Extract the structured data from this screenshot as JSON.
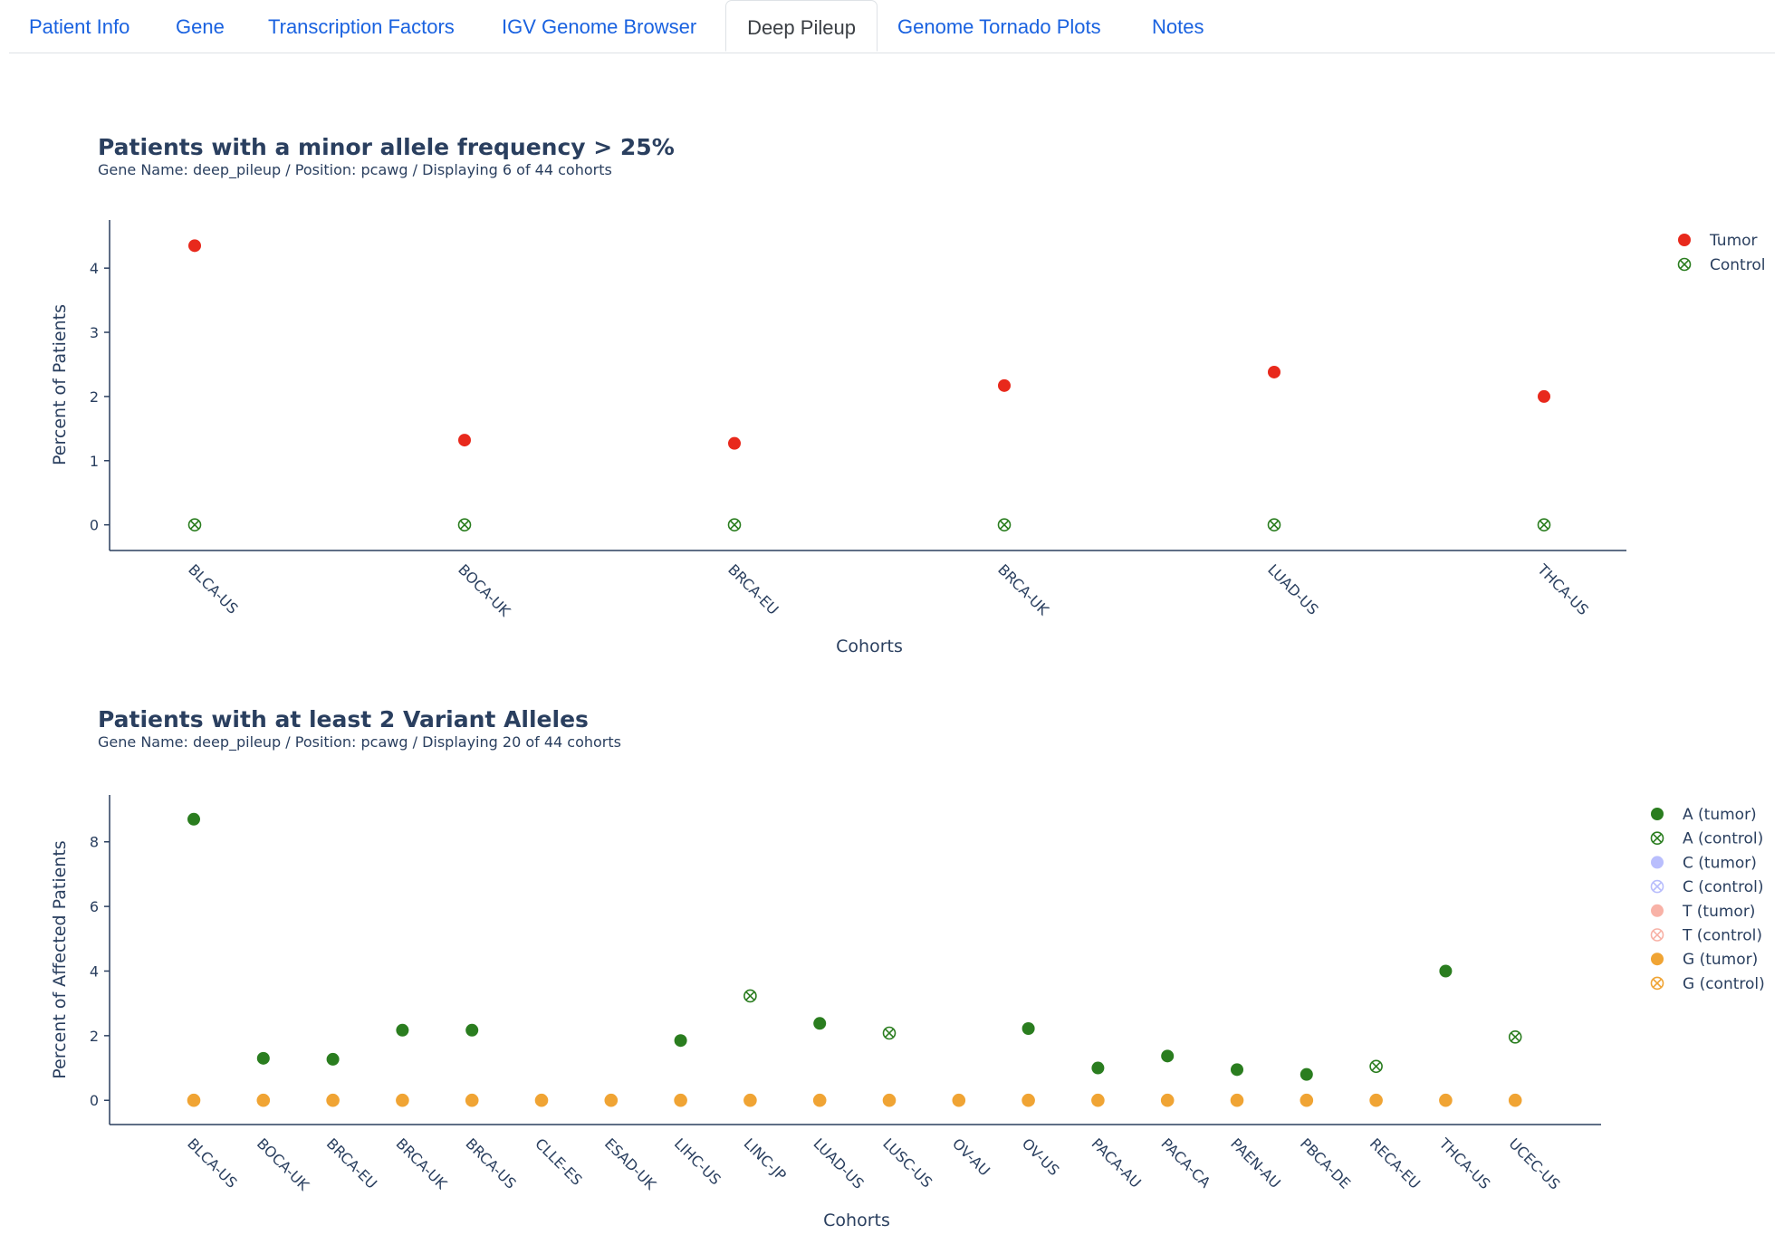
{
  "tabs": [
    {
      "label": "Patient Info",
      "active": false
    },
    {
      "label": "Gene",
      "active": false
    },
    {
      "label": "Transcription Factors",
      "active": false
    },
    {
      "label": "IGV Genome Browser",
      "active": false
    },
    {
      "label": "Deep Pileup",
      "active": true
    },
    {
      "label": "Genome Tornado Plots",
      "active": false
    },
    {
      "label": "Notes",
      "active": false
    }
  ],
  "chart_data": [
    {
      "type": "scatter",
      "title": "Patients with a minor allele frequency > 25%",
      "subtitle": "Gene Name: deep_pileup / Position: pcawg / Displaying 6 of 44 cohorts",
      "xlabel": "Cohorts",
      "ylabel": "Percent of Patients",
      "ylim": [
        -0.4,
        4.75
      ],
      "yticks": [
        0,
        1,
        2,
        3,
        4
      ],
      "categories": [
        "BLCA-US",
        "BOCA-UK",
        "BRCA-EU",
        "BRCA-UK",
        "LUAD-US",
        "THCA-US"
      ],
      "legend_position": "top-right",
      "grid": false,
      "series": [
        {
          "name": "Tumor",
          "marker": "filled",
          "color": "#e8291c",
          "faded": false,
          "values": [
            4.35,
            1.32,
            1.27,
            2.17,
            2.38,
            2.0
          ]
        },
        {
          "name": "Control",
          "marker": "circle-x",
          "color": "#2a7d1f",
          "faded": false,
          "values": [
            0,
            0,
            0,
            0,
            0,
            0
          ]
        }
      ]
    },
    {
      "type": "scatter",
      "title": "Patients with at least 2 Variant Alleles",
      "subtitle": "Gene Name: deep_pileup / Position: pcawg / Displaying 20 of 44 cohorts",
      "xlabel": "Cohorts",
      "ylabel": "Percent of Affected Patients",
      "ylim": [
        -0.75,
        9.45
      ],
      "yticks": [
        0,
        2,
        4,
        6,
        8
      ],
      "categories": [
        "BLCA-US",
        "BOCA-UK",
        "BRCA-EU",
        "BRCA-UK",
        "BRCA-US",
        "CLLE-ES",
        "ESAD-UK",
        "LIHC-US",
        "LINC-JP",
        "LUAD-US",
        "LUSC-US",
        "OV-AU",
        "OV-US",
        "PACA-AU",
        "PACA-CA",
        "PAEN-AU",
        "PBCA-DE",
        "RECA-EU",
        "THCA-US",
        "UCEC-US"
      ],
      "legend_position": "top-right",
      "grid": false,
      "series": [
        {
          "name": "A (tumor)",
          "marker": "filled",
          "color": "#2a7d1f",
          "faded": false,
          "values": [
            8.7,
            1.3,
            1.27,
            2.17,
            2.17,
            null,
            null,
            1.85,
            null,
            2.38,
            null,
            null,
            2.22,
            1.0,
            1.37,
            0.95,
            0.8,
            null,
            4.0,
            null
          ]
        },
        {
          "name": "A (control)",
          "marker": "circle-x",
          "color": "#2a7d1f",
          "faded": false,
          "values": [
            null,
            null,
            null,
            null,
            null,
            null,
            null,
            null,
            3.23,
            null,
            2.08,
            null,
            null,
            null,
            null,
            null,
            null,
            1.05,
            null,
            1.96
          ]
        },
        {
          "name": "C (tumor)",
          "marker": "filled",
          "color": "#636efa",
          "faded": true,
          "values": []
        },
        {
          "name": "C (control)",
          "marker": "circle-x",
          "color": "#636efa",
          "faded": true,
          "values": []
        },
        {
          "name": "T (tumor)",
          "marker": "filled",
          "color": "#ef553b",
          "faded": true,
          "values": []
        },
        {
          "name": "T (control)",
          "marker": "circle-x",
          "color": "#ef553b",
          "faded": true,
          "values": []
        },
        {
          "name": "G (tumor)",
          "marker": "filled",
          "color": "#f0a434",
          "faded": false,
          "values": [
            0,
            0,
            0,
            0,
            0,
            0,
            0,
            0,
            0,
            0,
            0,
            0,
            0,
            0,
            0,
            0,
            0,
            0,
            0,
            0
          ]
        },
        {
          "name": "G (control)",
          "marker": "circle-x",
          "color": "#f0a434",
          "faded": false,
          "values": [
            0,
            0,
            0,
            0,
            0,
            0,
            0,
            0,
            0,
            0,
            0,
            0,
            0,
            0,
            0,
            0,
            0,
            0,
            0,
            0
          ]
        }
      ]
    }
  ]
}
